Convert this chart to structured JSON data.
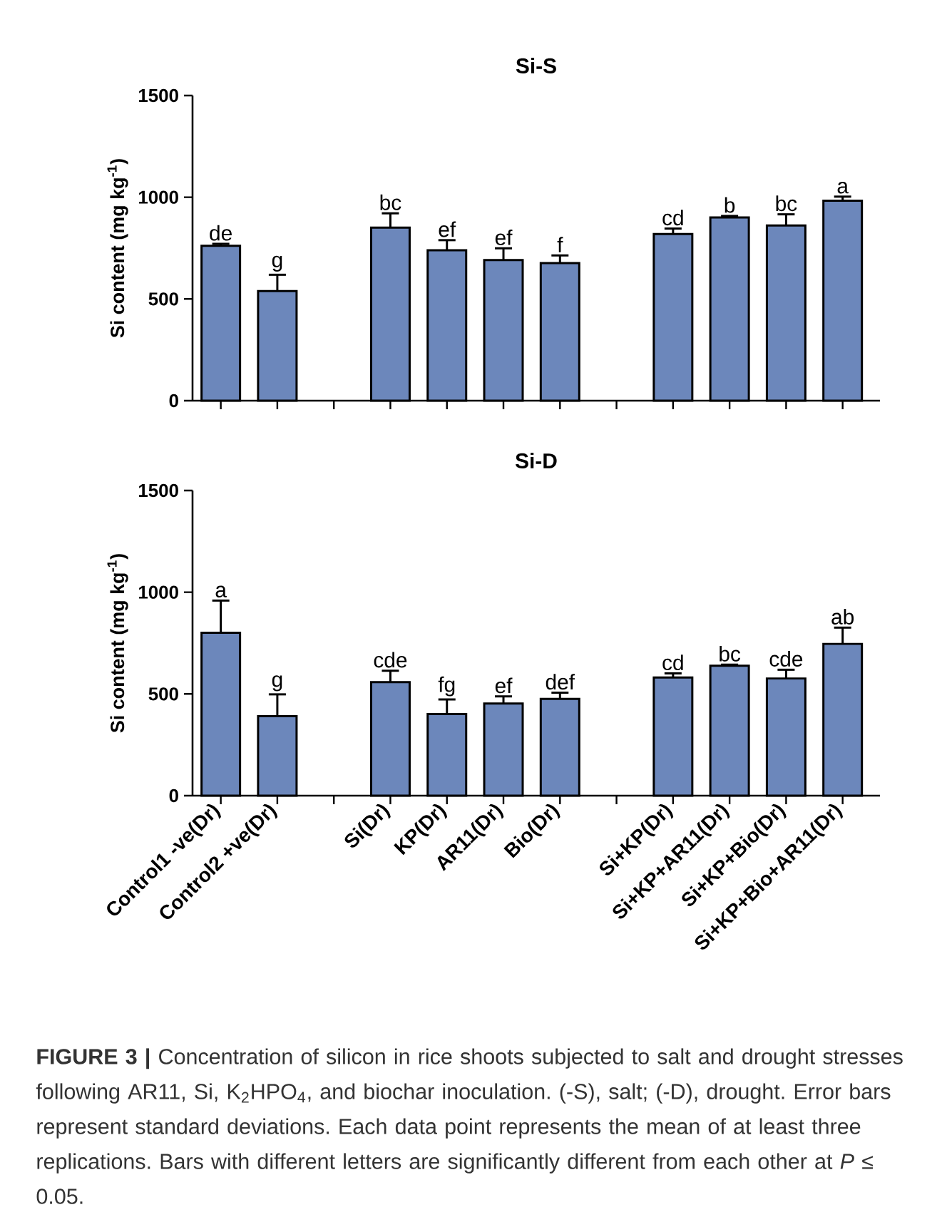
{
  "chart_data": [
    {
      "type": "bar",
      "title": "Si-S",
      "ylabel": "Si content (mg kg$^{-1}$)",
      "categories": [
        null,
        null,
        null,
        null,
        null,
        null,
        null,
        null,
        null,
        null,
        null,
        null
      ],
      "values": [
        761,
        539,
        null,
        851,
        739,
        691,
        676,
        null,
        819,
        901,
        861,
        983
      ],
      "errors": [
        10,
        80,
        null,
        70,
        50,
        58,
        38,
        null,
        27,
        7,
        55,
        20
      ],
      "value_labels": [
        "de",
        "g",
        null,
        "bc",
        "ef",
        "ef",
        "f",
        null,
        "cd",
        "b",
        "bc",
        "a"
      ],
      "color": "#6c87bb",
      "ylim": [
        0,
        1500
      ],
      "yticks": [
        0,
        500,
        1000,
        1500
      ]
    },
    {
      "type": "bar",
      "title": "Si-D",
      "ylabel": "Si content (mg kg$^{-1}$)",
      "categories": [
        "Control1 -ve(Dr)",
        "Control2 +ve(Dr)",
        null,
        "Si(Dr)",
        "KP(Dr)",
        "AR11(Dr)",
        "Bio(Dr)",
        null,
        "Si+KP(Dr)",
        "Si+KP+AR11(Dr)",
        "Si+KP+Bio(Dr)",
        "Si+KP+Bio+AR11(Dr)"
      ],
      "values": [
        801,
        391,
        null,
        558,
        401,
        453,
        476,
        null,
        581,
        639,
        576,
        746
      ],
      "errors": [
        158,
        107,
        null,
        56,
        72,
        35,
        30,
        null,
        20,
        5,
        43,
        80
      ],
      "value_labels": [
        "a",
        "g",
        null,
        "cde",
        "fg",
        "ef",
        "def",
        null,
        "cd",
        "bc",
        "cde",
        "ab"
      ],
      "color": "#6c87bb",
      "ylim": [
        0,
        1500
      ],
      "yticks": [
        0,
        500,
        1000,
        1500
      ],
      "annotations": [
        "**FIGURE 3 |** Concentration of silicon in rice shoots subjected to salt and drought stresses following AR11, Si, K$_{2}$HPO$_{4}$, and biochar inoculation. (-S), salt; (-D), drought. Error bars represent standard deviations. Each data point represents the mean of at least three replications. Bars with different letters are significantly different from each other at *P* ≤ 0.05."
      ]
    }
  ]
}
